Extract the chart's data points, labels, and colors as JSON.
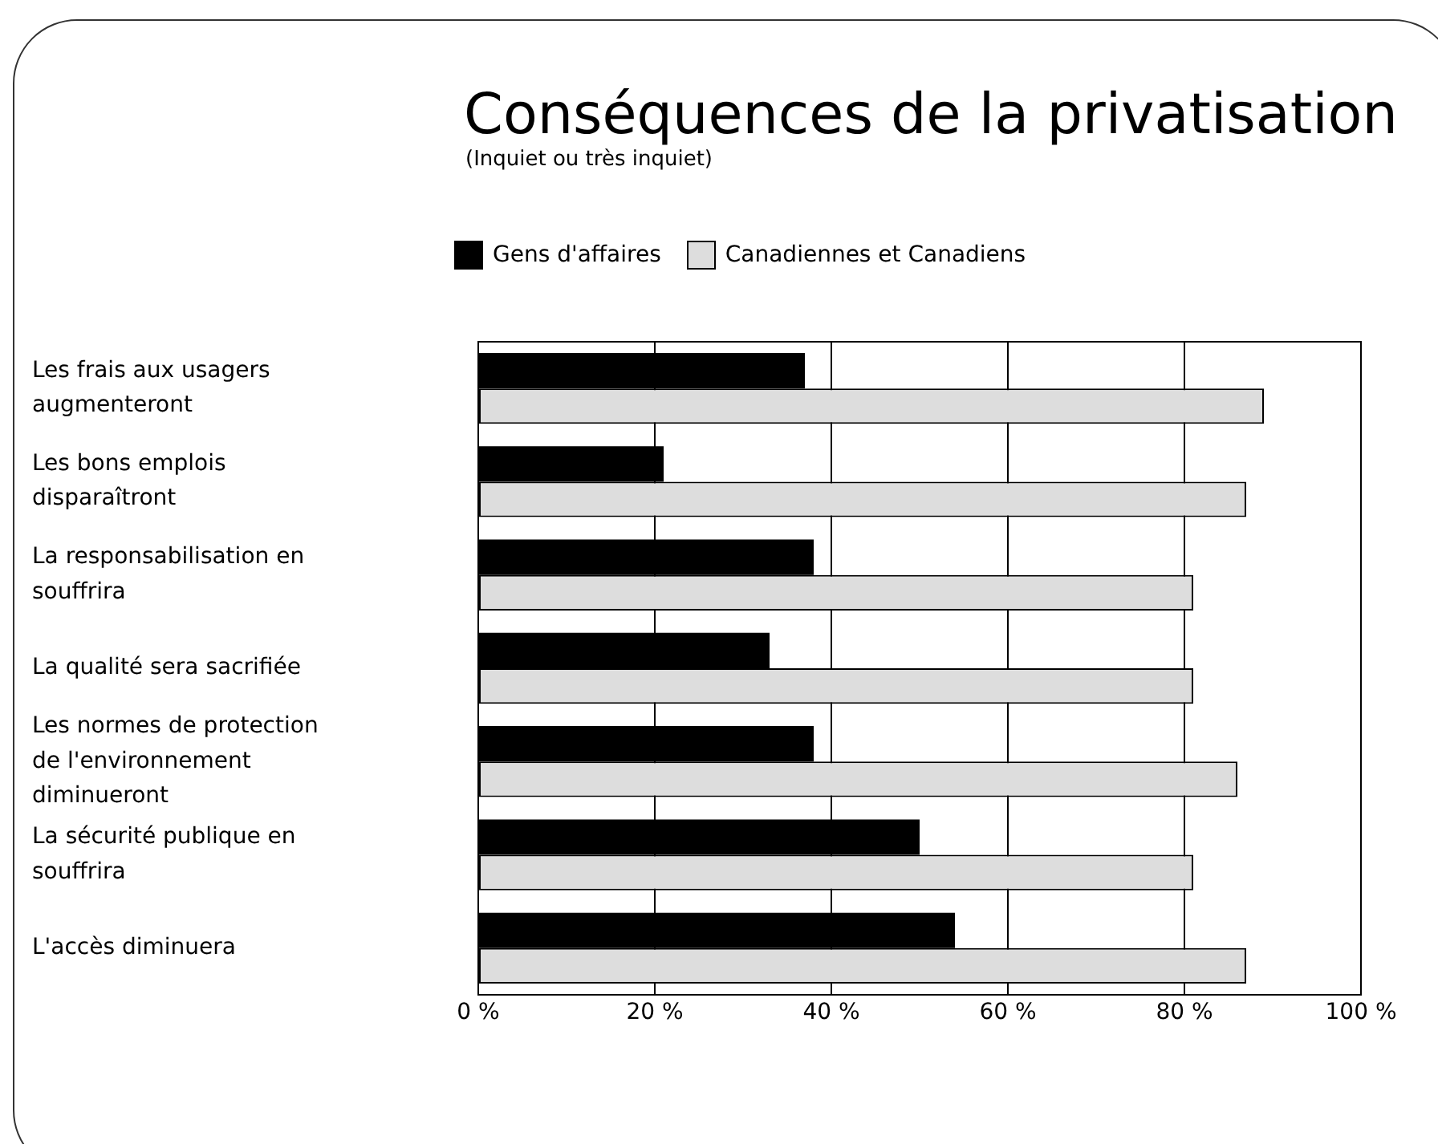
{
  "chart_data": {
    "type": "bar",
    "orientation": "horizontal",
    "title": "Conséquences de la privatisation",
    "subtitle": "(Inquiet ou très inquiet)",
    "categories": [
      "Les frais aux usagers augmenteront",
      "Les bons emplois disparaîtront",
      "La responsabilisation en souffrira",
      "La qualité sera sacrifiée",
      "Les normes de protection de l'environnement diminueront",
      "La sécurité publique en souffrira",
      "L'accès diminuera"
    ],
    "series": [
      {
        "name": "Gens d'affaires",
        "color": "#000000",
        "values": [
          37,
          21,
          38,
          33,
          38,
          50,
          54
        ]
      },
      {
        "name": "Canadiennes et Canadiens",
        "color": "#dddddd",
        "values": [
          89,
          87,
          81,
          81,
          86,
          81,
          87
        ]
      }
    ],
    "xlim": [
      0,
      100
    ],
    "xticks": [
      {
        "value": 0,
        "label": "0 %"
      },
      {
        "value": 20,
        "label": "20 %"
      },
      {
        "value": 40,
        "label": "40 %"
      },
      {
        "value": 60,
        "label": "60 %"
      },
      {
        "value": 80,
        "label": "80 %"
      },
      {
        "value": 100,
        "label": "100 %"
      }
    ],
    "grid": "x",
    "legend": "top"
  }
}
